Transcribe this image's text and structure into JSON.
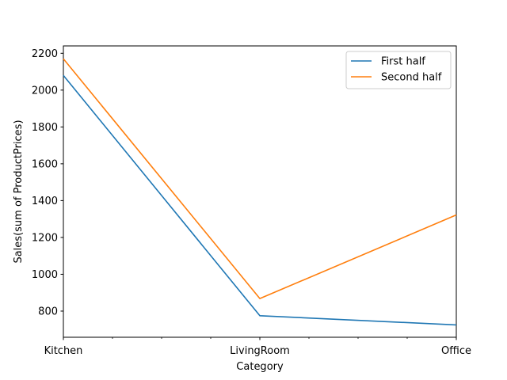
{
  "chart_data": {
    "type": "line",
    "title": "",
    "xlabel": "Category",
    "ylabel": "Sales(sum of ProductPrices)",
    "categories": [
      "Kitchen",
      "LivingRoom",
      "Office"
    ],
    "series": [
      {
        "name": "First half",
        "values": [
          2080,
          775,
          725
        ],
        "color": "#1f77b4"
      },
      {
        "name": "Second half",
        "values": [
          2170,
          868,
          1322
        ],
        "color": "#ff7f0e"
      }
    ],
    "ylim": [
      658,
      2240
    ],
    "yticks": [
      800,
      1000,
      1200,
      1400,
      1600,
      1800,
      2000,
      2200
    ],
    "grid": false,
    "legend_position": "top-right"
  }
}
